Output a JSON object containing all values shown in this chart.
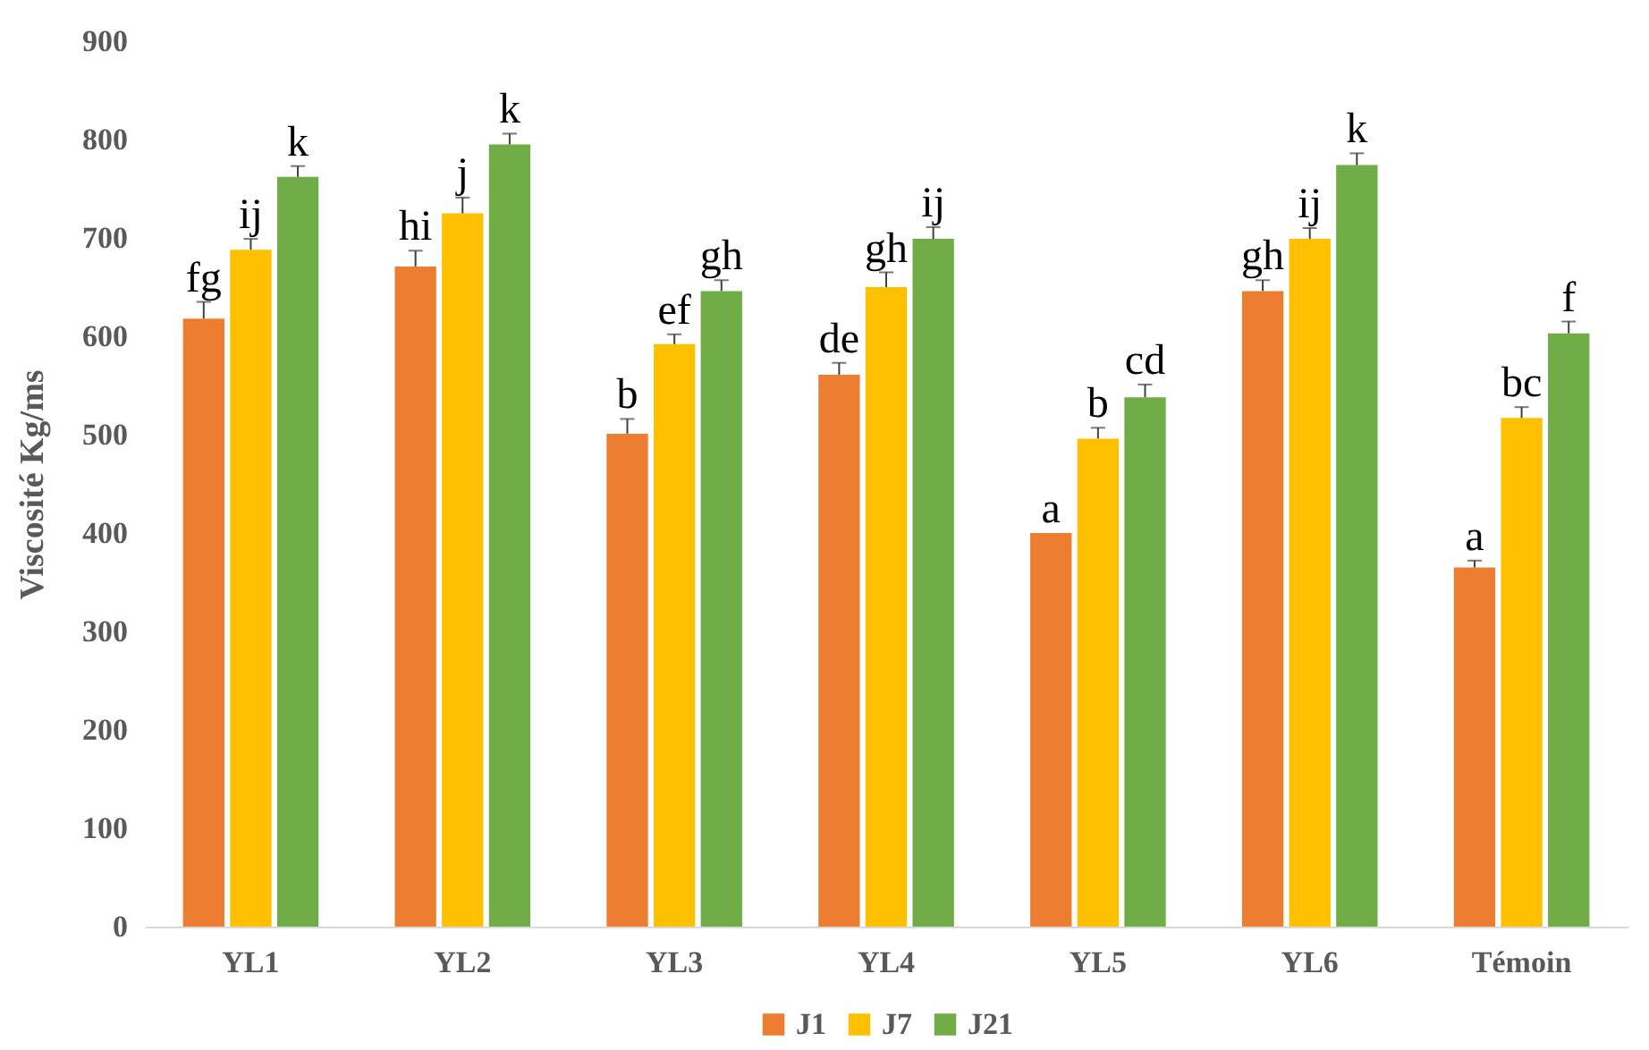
{
  "chart_data": {
    "type": "bar",
    "ylabel": "Viscosité  Kg/ms",
    "categories": [
      "YL1",
      "YL2",
      "YL3",
      "YL4",
      "YL5",
      "YL6",
      "Témoin"
    ],
    "series": [
      {
        "name": "J1",
        "color": "#ed7d31",
        "values": [
          618,
          671,
          501,
          561,
          400,
          646,
          365
        ],
        "errors": [
          [
            618,
            635
          ],
          [
            671,
            687
          ],
          [
            501,
            516
          ],
          [
            561,
            573
          ],
          null,
          [
            646,
            657
          ],
          [
            365,
            372
          ]
        ]
      },
      {
        "name": "J7",
        "color": "#ffc000",
        "values": [
          688,
          725,
          592,
          650,
          496,
          699,
          517
        ],
        "errors": [
          [
            688,
            699
          ],
          [
            725,
            741
          ],
          [
            592,
            602
          ],
          [
            650,
            665
          ],
          [
            496,
            507
          ],
          [
            699,
            710
          ],
          [
            517,
            528
          ]
        ]
      },
      {
        "name": "J21",
        "color": "#70ad47",
        "values": [
          762,
          795,
          646,
          699,
          538,
          774,
          603
        ],
        "errors": [
          [
            762,
            773
          ],
          [
            795,
            806
          ],
          [
            646,
            657
          ],
          [
            699,
            711
          ],
          [
            538,
            551
          ],
          [
            774,
            786
          ],
          [
            603,
            615
          ]
        ]
      }
    ],
    "annotations": [
      "fg",
      "ij",
      "k",
      "hi",
      "j",
      "k",
      "b",
      "ef",
      "gh",
      "de",
      "gh",
      "ij",
      "a",
      "b",
      "cd",
      "gh",
      "ij",
      "k",
      "a",
      "bc",
      "f"
    ],
    "ylim": [
      0,
      900
    ],
    "yticks": [
      0,
      100,
      200,
      300,
      400,
      500,
      600,
      700,
      800,
      900
    ],
    "grid": false,
    "legend": "bottom"
  }
}
